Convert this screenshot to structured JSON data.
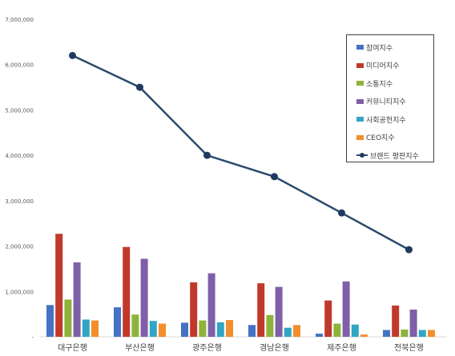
{
  "chart_data": {
    "type": "bar",
    "categories": [
      "대구은행",
      "부산은행",
      "광주은행",
      "경남은행",
      "제주은행",
      "전북은행"
    ],
    "y_ticks": [
      "-",
      "1,000,000",
      "2,000,000",
      "3,000,000",
      "4,000,000",
      "5,000,000",
      "6,000,000",
      "7,000,000"
    ],
    "ylim": [
      0,
      7000000
    ],
    "legend_position": "top-right",
    "series": [
      {
        "name": "참여지수",
        "color": "#4472c4",
        "type": "bar",
        "values": [
          700000,
          650000,
          310000,
          260000,
          70000,
          150000
        ]
      },
      {
        "name": "미디어지수",
        "color": "#c0392b",
        "type": "bar",
        "values": [
          2270000,
          1980000,
          1200000,
          1180000,
          800000,
          690000
        ]
      },
      {
        "name": "소통지수",
        "color": "#8db33a",
        "type": "bar",
        "values": [
          820000,
          490000,
          360000,
          480000,
          290000,
          160000
        ]
      },
      {
        "name": "커뮤니티지수",
        "color": "#7f5fa8",
        "type": "bar",
        "values": [
          1640000,
          1720000,
          1400000,
          1100000,
          1220000,
          600000
        ]
      },
      {
        "name": "사회공헌지수",
        "color": "#31a6c4",
        "type": "bar",
        "values": [
          380000,
          350000,
          320000,
          200000,
          270000,
          150000
        ]
      },
      {
        "name": "CEO지수",
        "color": "#f28e2b",
        "type": "bar",
        "values": [
          360000,
          290000,
          370000,
          260000,
          50000,
          150000
        ]
      },
      {
        "name": "브랜드 평판지수",
        "color": "#1f3a5f",
        "type": "line",
        "values": [
          6200000,
          5500000,
          4000000,
          3530000,
          2730000,
          1920000
        ]
      }
    ]
  }
}
